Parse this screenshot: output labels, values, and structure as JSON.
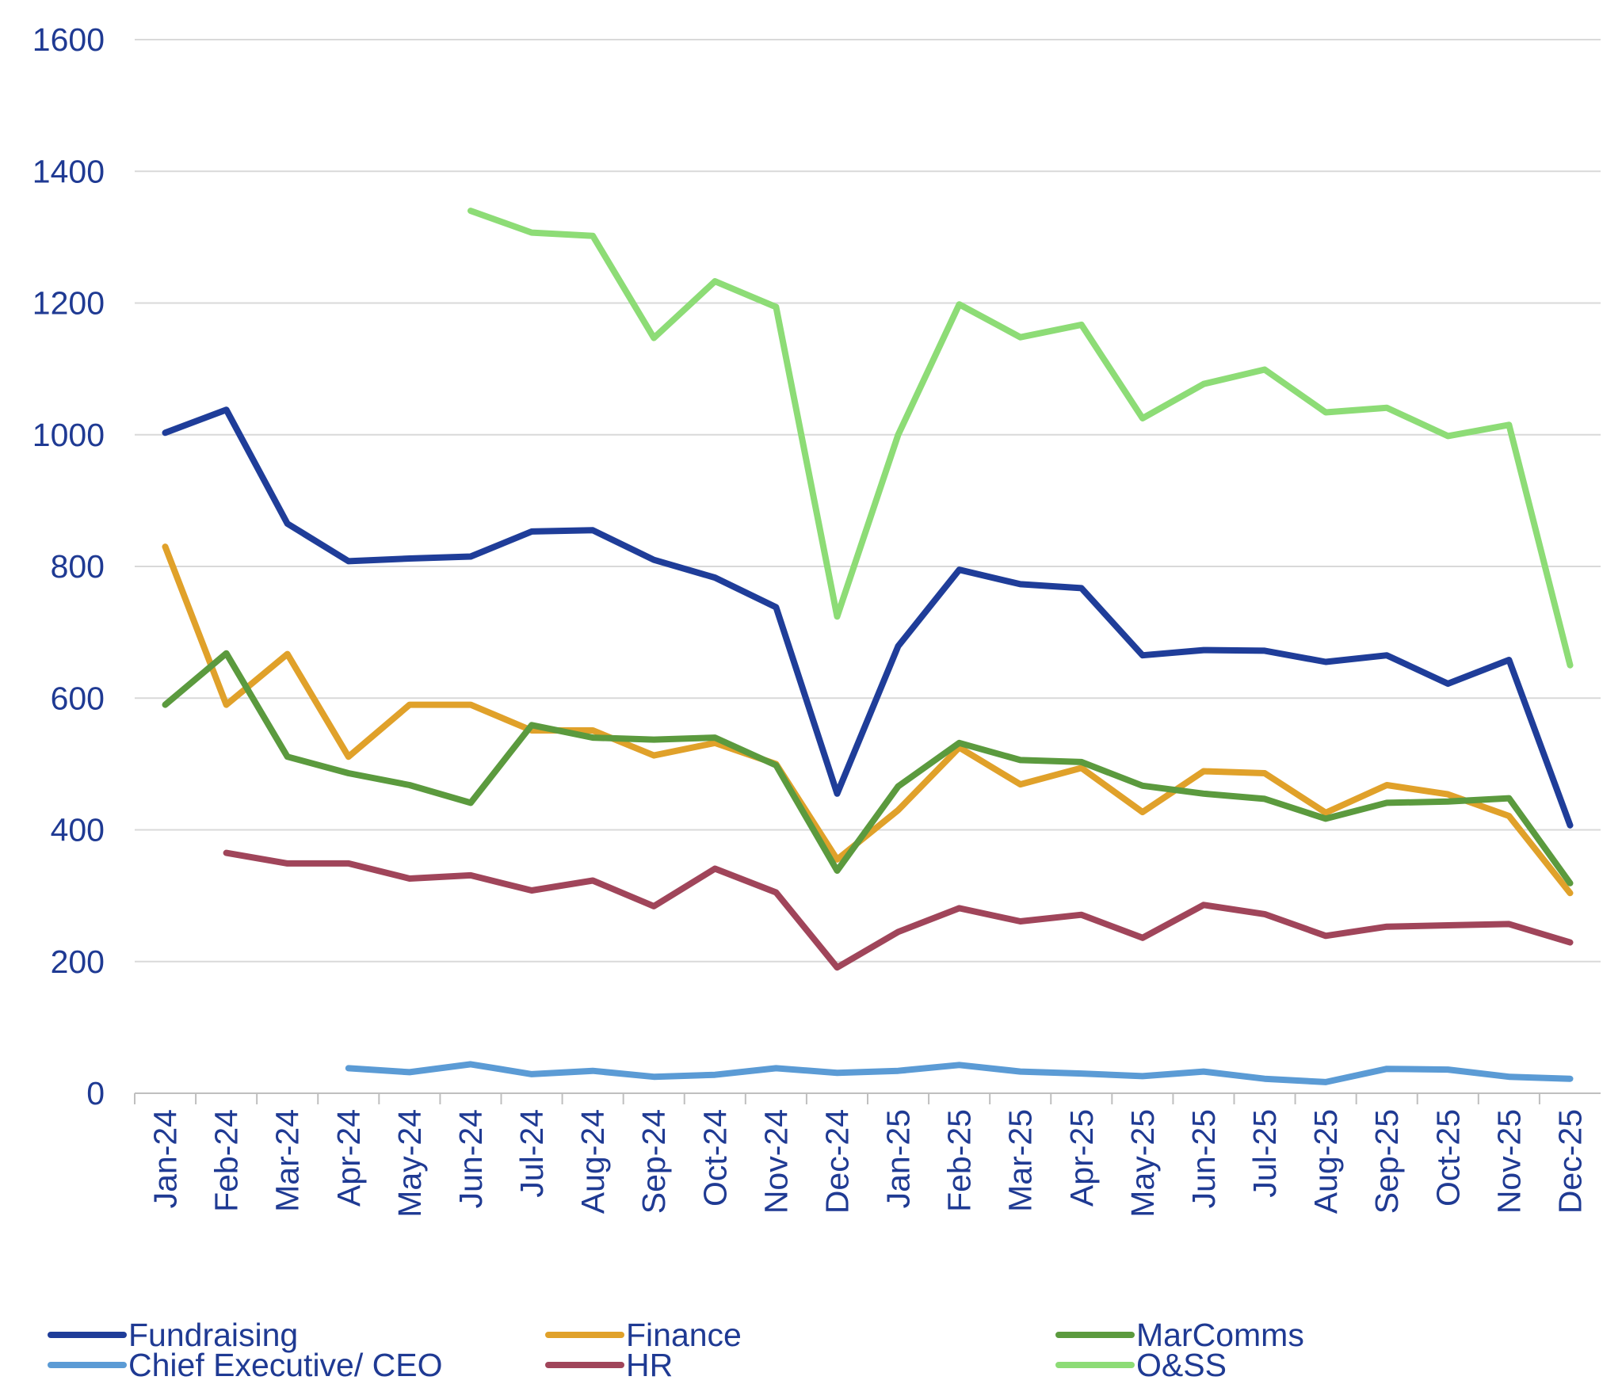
{
  "chart_data": {
    "type": "line",
    "title": "",
    "xlabel": "",
    "ylabel": "",
    "ylim": [
      0,
      1600
    ],
    "yticks": [
      0,
      200,
      400,
      600,
      800,
      1000,
      1200,
      1400,
      1600
    ],
    "grid": true,
    "legend_position": "bottom",
    "categories": [
      "Jan-24",
      "Feb-24",
      "Mar-24",
      "Apr-24",
      "May-24",
      "Jun-24",
      "Jul-24",
      "Aug-24",
      "Sep-24",
      "Oct-24",
      "Nov-24",
      "Dec-24",
      "Jan-25",
      "Feb-25",
      "Mar-25",
      "Apr-25",
      "May-25",
      "Jun-25",
      "Jul-25",
      "Aug-25",
      "Sep-25",
      "Oct-25",
      "Nov-25",
      "Dec-25"
    ],
    "series": [
      {
        "name": "Fundraising",
        "color": "#1f3d99",
        "values": [
          1003,
          1038,
          865,
          808,
          812,
          815,
          853,
          855,
          810,
          783,
          738,
          455,
          679,
          795,
          773,
          767,
          665,
          673,
          672,
          655,
          665,
          622,
          658,
          407
        ]
      },
      {
        "name": "Finance",
        "color": "#e0a12a",
        "values": [
          830,
          590,
          667,
          511,
          590,
          590,
          551,
          551,
          513,
          532,
          500,
          355,
          430,
          525,
          469,
          494,
          427,
          489,
          486,
          426,
          468,
          454,
          421,
          304
        ]
      },
      {
        "name": "MarComms",
        "color": "#5b9a3e",
        "values": [
          590,
          668,
          511,
          486,
          468,
          441,
          559,
          540,
          537,
          540,
          498,
          338,
          466,
          532,
          506,
          503,
          467,
          455,
          447,
          417,
          441,
          443,
          448,
          319
        ]
      },
      {
        "name": "Chief Executive/ CEO",
        "color": "#5b9bd5",
        "values": [
          null,
          null,
          null,
          38,
          32,
          44,
          29,
          34,
          25,
          28,
          38,
          31,
          34,
          43,
          33,
          30,
          26,
          33,
          22,
          17,
          37,
          36,
          25,
          22
        ]
      },
      {
        "name": "HR",
        "color": "#a0455a",
        "values": [
          null,
          365,
          349,
          349,
          326,
          331,
          308,
          323,
          284,
          341,
          305,
          191,
          245,
          281,
          261,
          271,
          236,
          286,
          272,
          239,
          253,
          255,
          257,
          229
        ]
      },
      {
        "name": "O&SS",
        "color": "#8ddc76",
        "values": [
          null,
          null,
          null,
          null,
          null,
          1340,
          1307,
          1302,
          1147,
          1233,
          1194,
          724,
          1000,
          1198,
          1148,
          1167,
          1025,
          1077,
          1099,
          1034,
          1041,
          998,
          1015,
          650
        ]
      }
    ]
  }
}
